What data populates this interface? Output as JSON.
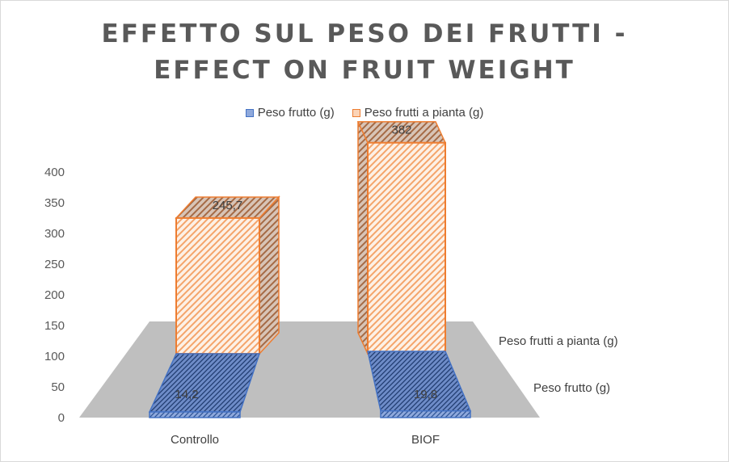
{
  "chart_data": {
    "type": "bar",
    "subtype": "3d-column",
    "title_lines": [
      "EFFETTO SUL PESO DEI FRUTTI -",
      "EFFECT ON FRUIT WEIGHT"
    ],
    "categories": [
      "Controllo",
      "BIOF"
    ],
    "series": [
      {
        "name": "Peso frutto (g)",
        "values": [
          14.2,
          19.8
        ],
        "labels": [
          "14,2",
          "19,8"
        ],
        "color": "#4472C4"
      },
      {
        "name": "Peso frutti a pianta (g)",
        "values": [
          245.7,
          382
        ],
        "labels": [
          "245,7",
          "382"
        ],
        "color": "#ED7D31"
      }
    ],
    "y_ticks": [
      "0",
      "50",
      "100",
      "150",
      "200",
      "250",
      "300",
      "350",
      "400"
    ],
    "ylim": [
      0,
      400
    ],
    "floor_color": "#BFBFBF",
    "legend_position": "top",
    "gridlines": false
  }
}
